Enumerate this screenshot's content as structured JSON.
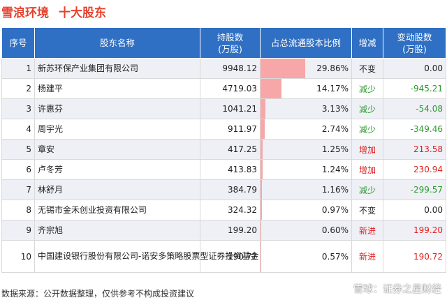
{
  "title": {
    "company": "雪浪环境",
    "subtitle": "十大股东"
  },
  "headers": {
    "rank": "序号",
    "name": "股东名称",
    "shares_line1": "持股数",
    "shares_line2": "(万股)",
    "ratio": "占总流通股本比例",
    "trend": "增减",
    "change_line1": "变动股数",
    "change_line2": "(万股)"
  },
  "rows": [
    {
      "rank": "1",
      "name": "新苏环保产业集团有限公司",
      "shares": "9948.12",
      "ratio": "29.86%",
      "ratio_value": 29.86,
      "trend": "不变",
      "trend_type": "flat",
      "change": "0.00"
    },
    {
      "rank": "2",
      "name": "杨建平",
      "shares": "4719.03",
      "ratio": "14.17%",
      "ratio_value": 14.17,
      "trend": "减少",
      "trend_type": "down",
      "change": "-945.21"
    },
    {
      "rank": "3",
      "name": "许惠芬",
      "shares": "1041.21",
      "ratio": "3.13%",
      "ratio_value": 3.13,
      "trend": "减少",
      "trend_type": "down",
      "change": "-54.08"
    },
    {
      "rank": "4",
      "name": "周宇光",
      "shares": "911.97",
      "ratio": "2.74%",
      "ratio_value": 2.74,
      "trend": "减少",
      "trend_type": "down",
      "change": "-349.46"
    },
    {
      "rank": "5",
      "name": "章安",
      "shares": "417.25",
      "ratio": "1.25%",
      "ratio_value": 1.25,
      "trend": "增加",
      "trend_type": "up",
      "change": "213.58"
    },
    {
      "rank": "6",
      "name": "卢冬芳",
      "shares": "413.83",
      "ratio": "1.24%",
      "ratio_value": 1.24,
      "trend": "增加",
      "trend_type": "up",
      "change": "230.94"
    },
    {
      "rank": "7",
      "name": "林舒月",
      "shares": "384.79",
      "ratio": "1.16%",
      "ratio_value": 1.16,
      "trend": "减少",
      "trend_type": "down",
      "change": "-299.57"
    },
    {
      "rank": "8",
      "name": "无锡市金禾创业投资有限公司",
      "shares": "324.32",
      "ratio": "0.97%",
      "ratio_value": 0.97,
      "trend": "不变",
      "trend_type": "flat",
      "change": "0.00"
    },
    {
      "rank": "9",
      "name": "齐宗旭",
      "shares": "199.20",
      "ratio": "0.60%",
      "ratio_value": 0.6,
      "trend": "新进",
      "trend_type": "up",
      "change": "199.20"
    },
    {
      "rank": "10",
      "name": "中国建设银行股份有限公司-诺安多策略股票型证券投资基金",
      "shares": "190.72",
      "ratio": "0.57%",
      "ratio_value": 0.57,
      "trend": "新进",
      "trend_type": "up",
      "change": "190.72"
    }
  ],
  "colors": {
    "title": "#e8412c",
    "header_bg": "#2f6fc4",
    "bar": "#f7a7a7",
    "down": "#2a9a2a",
    "up": "#e02020"
  },
  "footer": {
    "source": "数据来源：公开数据整理，仅供参考不构成投资建议"
  },
  "watermark": {
    "brand": "雪球：证券之星财经",
    "icon": "snowball-logo-icon"
  }
}
